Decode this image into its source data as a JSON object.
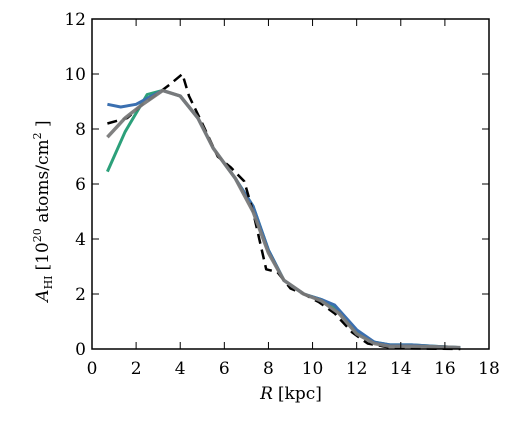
{
  "chart_data": {
    "type": "line",
    "xlabel_var": "R",
    "xlabel_unit": "[kpc]",
    "ylabel_var": "A",
    "ylabel_sub": "HI",
    "ylabel_unit_pre": "[10",
    "ylabel_exp": "20",
    "ylabel_unit_mid": " atoms/cm",
    "ylabel_exp2": "2",
    "ylabel_unit_post": " ]",
    "xlim": [
      0,
      18
    ],
    "ylim": [
      0,
      12
    ],
    "xticks": [
      "0",
      "2",
      "4",
      "6",
      "8",
      "10",
      "12",
      "14",
      "16",
      "18"
    ],
    "yticks": [
      "0",
      "2",
      "4",
      "6",
      "8",
      "10",
      "12"
    ],
    "grid": false,
    "series": [
      {
        "color": "#2ca07a",
        "style": "solid",
        "points": [
          [
            0.7,
            6.45
          ],
          [
            1.5,
            7.9
          ],
          [
            2.5,
            9.25
          ],
          [
            3.2,
            9.4
          ],
          [
            4.0,
            9.2
          ],
          [
            4.8,
            8.4
          ],
          [
            5.5,
            7.3
          ],
          [
            6.5,
            6.2
          ],
          [
            7.3,
            5.2
          ],
          [
            8.0,
            3.6
          ],
          [
            8.7,
            2.5
          ],
          [
            9.6,
            2.0
          ],
          [
            10.4,
            1.8
          ],
          [
            11.2,
            1.4
          ],
          [
            12.0,
            0.6
          ],
          [
            12.8,
            0.25
          ],
          [
            13.5,
            0.15
          ],
          [
            14.5,
            0.15
          ],
          [
            15.5,
            0.1
          ],
          [
            16.7,
            0.05
          ]
        ]
      },
      {
        "color": "#3a6fb0",
        "style": "solid",
        "points": [
          [
            0.7,
            8.9
          ],
          [
            1.3,
            8.8
          ],
          [
            2.0,
            8.9
          ],
          [
            2.7,
            9.2
          ],
          [
            3.2,
            9.4
          ],
          [
            4.0,
            9.2
          ],
          [
            4.8,
            8.4
          ],
          [
            5.5,
            7.3
          ],
          [
            6.5,
            6.2
          ],
          [
            7.3,
            5.2
          ],
          [
            8.0,
            3.6
          ],
          [
            8.7,
            2.5
          ],
          [
            9.6,
            2.0
          ],
          [
            10.4,
            1.8
          ],
          [
            11.0,
            1.6
          ],
          [
            12.0,
            0.7
          ],
          [
            12.8,
            0.25
          ],
          [
            13.5,
            0.15
          ],
          [
            14.5,
            0.15
          ],
          [
            15.5,
            0.1
          ],
          [
            16.7,
            0.05
          ]
        ]
      },
      {
        "color": "#000000",
        "style": "dashed",
        "points": [
          [
            0.7,
            8.2
          ],
          [
            1.6,
            8.4
          ],
          [
            2.3,
            8.9
          ],
          [
            3.0,
            9.3
          ],
          [
            3.5,
            9.6
          ],
          [
            4.1,
            10.0
          ],
          [
            4.4,
            9.2
          ],
          [
            5.0,
            8.2
          ],
          [
            5.7,
            7.0
          ],
          [
            6.3,
            6.6
          ],
          [
            6.9,
            6.1
          ],
          [
            7.3,
            5.0
          ],
          [
            7.9,
            2.9
          ],
          [
            8.4,
            2.8
          ],
          [
            9.0,
            2.2
          ],
          [
            9.6,
            2.0
          ],
          [
            10.3,
            1.7
          ],
          [
            11.0,
            1.3
          ],
          [
            11.8,
            0.6
          ],
          [
            12.5,
            0.2
          ],
          [
            13.5,
            0.05
          ],
          [
            14.5,
            0.02
          ],
          [
            16.7,
            0.0
          ]
        ]
      },
      {
        "color": "#7a7a7a",
        "style": "solid-thick",
        "points": [
          [
            0.7,
            7.7
          ],
          [
            1.5,
            8.4
          ],
          [
            2.3,
            8.9
          ],
          [
            3.2,
            9.4
          ],
          [
            4.0,
            9.2
          ],
          [
            4.8,
            8.4
          ],
          [
            5.5,
            7.3
          ],
          [
            6.5,
            6.2
          ],
          [
            7.3,
            5.0
          ],
          [
            8.0,
            3.5
          ],
          [
            8.7,
            2.5
          ],
          [
            9.6,
            2.0
          ],
          [
            10.4,
            1.75
          ],
          [
            11.2,
            1.3
          ],
          [
            12.0,
            0.55
          ],
          [
            12.8,
            0.2
          ],
          [
            13.5,
            0.1
          ],
          [
            14.5,
            0.1
          ],
          [
            15.5,
            0.08
          ],
          [
            16.7,
            0.05
          ]
        ]
      }
    ]
  }
}
